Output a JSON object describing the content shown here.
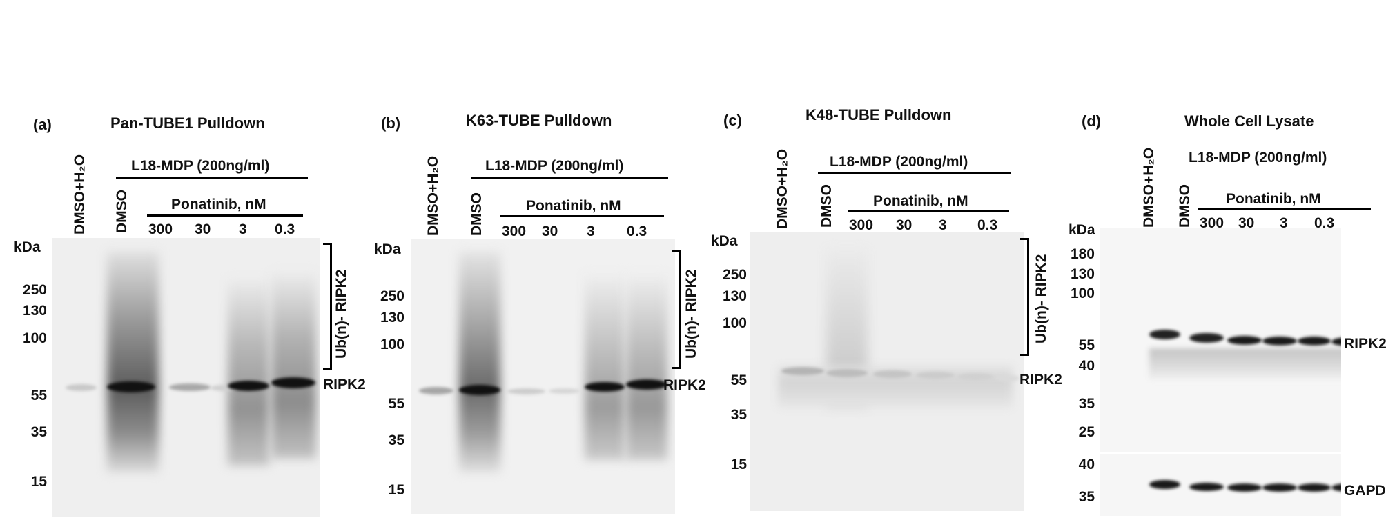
{
  "panels": [
    {
      "letter": "(a)",
      "title": "Pan-TUBE1 Pulldown",
      "control_lane": "DMSO+H₂O",
      "treatment": "L18-MDP (200ng/ml)",
      "dmso_lane": "DMSO",
      "drug": "Ponatinib, nM",
      "doses": [
        "300",
        "30",
        "3",
        "0.3"
      ],
      "kda": "kDa",
      "markers": [
        "250",
        "130",
        "100",
        "55",
        "35",
        "15"
      ],
      "bracket": "Ub(n)- RIPK2",
      "band": "RIPK2"
    },
    {
      "letter": "(b)",
      "title": "K63-TUBE Pulldown",
      "control_lane": "DMSO+H₂O",
      "treatment": "L18-MDP (200ng/ml)",
      "dmso_lane": "DMSO",
      "drug": "Ponatinib, nM",
      "doses": [
        "300",
        "30",
        "3",
        "0.3"
      ],
      "kda": "kDa",
      "markers": [
        "250",
        "130",
        "100",
        "55",
        "35",
        "15"
      ],
      "bracket": "Ub(n)- RIPK2",
      "band": "RIPK2"
    },
    {
      "letter": "(c)",
      "title": "K48-TUBE Pulldown",
      "control_lane": "DMSO+H₂O",
      "treatment": "L18-MDP (200ng/ml)",
      "dmso_lane": "DMSO",
      "drug": "Ponatinib, nM",
      "doses": [
        "300",
        "30",
        "3",
        "0.3"
      ],
      "kda": "kDa",
      "markers": [
        "250",
        "130",
        "100",
        "55",
        "35",
        "15"
      ],
      "bracket": "Ub(n)- RIPK2",
      "band": "RIPK2"
    },
    {
      "letter": "(d)",
      "title": "Whole Cell Lysate",
      "control_lane": "DMSO+H₂O",
      "treatment": "L18-MDP (200ng/ml)",
      "dmso_lane": "DMSO",
      "drug": "Ponatinib, nM",
      "doses": [
        "300",
        "30",
        "3",
        "0.3"
      ],
      "kda": "kDa",
      "markers": [
        "180",
        "130",
        "100",
        "55",
        "40",
        "35",
        "25"
      ],
      "markers_lower": [
        "40",
        "35"
      ],
      "band": "RIPK2",
      "band_lower": "GAPDH"
    }
  ]
}
